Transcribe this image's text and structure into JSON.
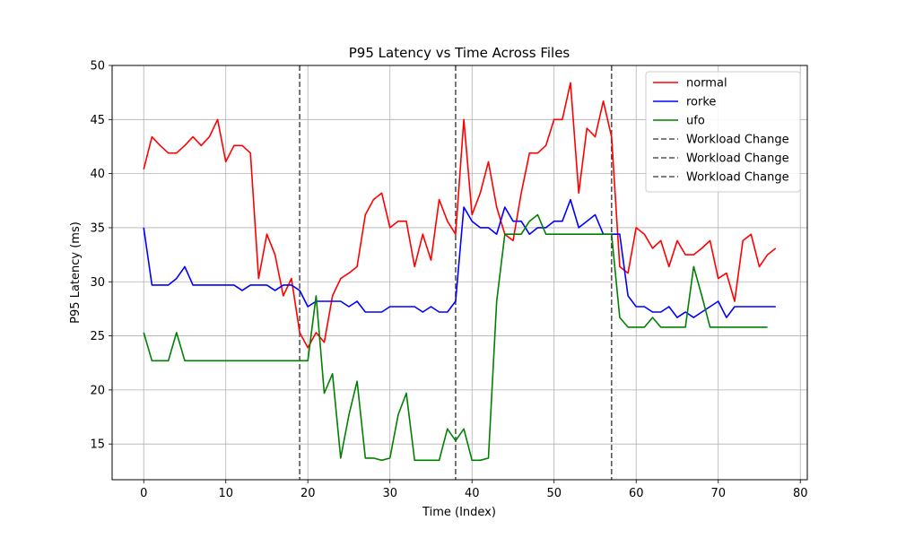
{
  "chart_data": {
    "type": "line",
    "title": "P95 Latency vs Time Across Files",
    "xlabel": "Time (Index)",
    "ylabel": "P95 Latency (ms)",
    "xlim": [
      -3.85,
      80.85
    ],
    "ylim": [
      11.7,
      50
    ],
    "xticks": [
      0,
      10,
      20,
      30,
      40,
      50,
      60,
      70,
      80
    ],
    "yticks": [
      15,
      20,
      25,
      30,
      35,
      40,
      45,
      50
    ],
    "grid": true,
    "legend_position": "top-right",
    "series": [
      {
        "name": "normal",
        "color": "#ff0000",
        "x": [
          0,
          1,
          2,
          3,
          4,
          5,
          6,
          7,
          8,
          9,
          10,
          11,
          12,
          13,
          14,
          15,
          16,
          17,
          18,
          19,
          20,
          21,
          22,
          23,
          24,
          25,
          26,
          27,
          28,
          29,
          30,
          31,
          32,
          33,
          34,
          35,
          36,
          37,
          38,
          39,
          40,
          41,
          42,
          43,
          44,
          45,
          46,
          47,
          48,
          49,
          50,
          51,
          52,
          53,
          54,
          55,
          56,
          57,
          58,
          59,
          60,
          61,
          62,
          63,
          64,
          65,
          66,
          67,
          68,
          69,
          70,
          71,
          72,
          73,
          74,
          75,
          76,
          77
        ],
        "values": [
          40.4,
          43.4,
          42.6,
          41.9,
          41.9,
          42.6,
          43.4,
          42.6,
          43.4,
          45.0,
          41.1,
          42.6,
          42.6,
          41.9,
          30.3,
          34.4,
          32.5,
          28.7,
          30.3,
          25.3,
          23.9,
          25.3,
          24.4,
          28.7,
          30.3,
          30.8,
          31.4,
          36.2,
          37.6,
          38.2,
          35.0,
          35.6,
          35.6,
          31.4,
          34.4,
          32.0,
          37.6,
          35.6,
          34.4,
          45.0,
          36.2,
          38.2,
          41.1,
          36.9,
          34.4,
          33.8,
          38.2,
          41.9,
          41.9,
          42.6,
          45.0,
          45.0,
          48.4,
          38.2,
          44.2,
          43.4,
          46.7,
          43.4,
          31.4,
          30.8,
          35.0,
          34.4,
          33.1,
          33.8,
          31.4,
          33.8,
          32.5,
          32.5,
          33.1,
          33.8,
          30.3,
          30.8,
          28.2,
          33.8,
          34.4,
          31.4,
          32.5,
          33.1
        ]
      },
      {
        "name": "rorke",
        "color": "#0000ff",
        "x": [
          0,
          1,
          2,
          3,
          4,
          5,
          6,
          7,
          8,
          9,
          10,
          11,
          12,
          13,
          14,
          15,
          16,
          17,
          18,
          19,
          20,
          21,
          22,
          23,
          24,
          25,
          26,
          27,
          28,
          29,
          30,
          31,
          32,
          33,
          34,
          35,
          36,
          37,
          38,
          39,
          40,
          41,
          42,
          43,
          44,
          45,
          46,
          47,
          48,
          49,
          50,
          51,
          52,
          53,
          54,
          55,
          56,
          57,
          58,
          59,
          60,
          61,
          62,
          63,
          64,
          65,
          66,
          67,
          68,
          69,
          70,
          71,
          72,
          73,
          74,
          75,
          76,
          77
        ],
        "values": [
          35.0,
          29.7,
          29.7,
          29.7,
          30.3,
          31.4,
          29.7,
          29.7,
          29.7,
          29.7,
          29.7,
          29.7,
          29.2,
          29.7,
          29.7,
          29.7,
          29.2,
          29.7,
          29.7,
          29.2,
          27.7,
          28.2,
          28.2,
          28.2,
          28.2,
          27.7,
          28.2,
          27.2,
          27.2,
          27.2,
          27.7,
          27.7,
          27.7,
          27.7,
          27.2,
          27.7,
          27.2,
          27.2,
          28.2,
          36.9,
          35.6,
          35.0,
          35.0,
          34.4,
          36.9,
          35.6,
          35.6,
          34.4,
          35.0,
          35.0,
          35.6,
          35.6,
          37.6,
          35.0,
          35.6,
          36.2,
          34.4,
          34.4,
          34.4,
          28.7,
          27.7,
          27.7,
          27.2,
          27.2,
          27.7,
          26.7,
          27.2,
          26.7,
          27.2,
          27.7,
          28.2,
          26.7,
          27.7,
          27.7,
          27.7,
          27.7,
          27.7,
          27.7
        ]
      },
      {
        "name": "ufo",
        "color": "#008000",
        "x": [
          0,
          1,
          2,
          3,
          4,
          5,
          6,
          7,
          8,
          9,
          10,
          11,
          12,
          13,
          14,
          15,
          16,
          17,
          18,
          19,
          20,
          21,
          22,
          23,
          24,
          25,
          26,
          27,
          28,
          29,
          30,
          31,
          32,
          33,
          34,
          35,
          36,
          37,
          38,
          39,
          40,
          41,
          42,
          43,
          44,
          45,
          46,
          47,
          48,
          49,
          50,
          51,
          52,
          53,
          54,
          55,
          56,
          57,
          58,
          59,
          60,
          61,
          62,
          63,
          64,
          65,
          66,
          67,
          68,
          69,
          70,
          71,
          72,
          73,
          74,
          75,
          76
        ],
        "values": [
          25.3,
          22.7,
          22.7,
          22.7,
          25.3,
          22.7,
          22.7,
          22.7,
          22.7,
          22.7,
          22.7,
          22.7,
          22.7,
          22.7,
          22.7,
          22.7,
          22.7,
          22.7,
          22.7,
          22.7,
          22.7,
          28.7,
          19.7,
          21.5,
          13.7,
          17.7,
          20.8,
          13.7,
          13.7,
          13.5,
          13.7,
          17.7,
          19.7,
          13.5,
          13.5,
          13.5,
          13.5,
          16.4,
          15.3,
          16.4,
          13.5,
          13.5,
          13.7,
          28.2,
          34.4,
          34.4,
          34.4,
          35.6,
          36.2,
          34.4,
          34.4,
          34.4,
          34.4,
          34.4,
          34.4,
          34.4,
          34.4,
          34.4,
          26.7,
          25.8,
          25.8,
          25.8,
          26.7,
          25.8,
          25.8,
          25.8,
          25.8,
          31.4,
          28.7,
          25.8,
          25.8,
          25.8,
          25.8,
          25.8,
          25.8,
          25.8,
          25.8
        ]
      }
    ],
    "vlines": [
      {
        "name": "Workload Change",
        "x": 19,
        "color": "#555555"
      },
      {
        "name": "Workload Change",
        "x": 38,
        "color": "#555555"
      },
      {
        "name": "Workload Change",
        "x": 57,
        "color": "#555555"
      }
    ]
  }
}
